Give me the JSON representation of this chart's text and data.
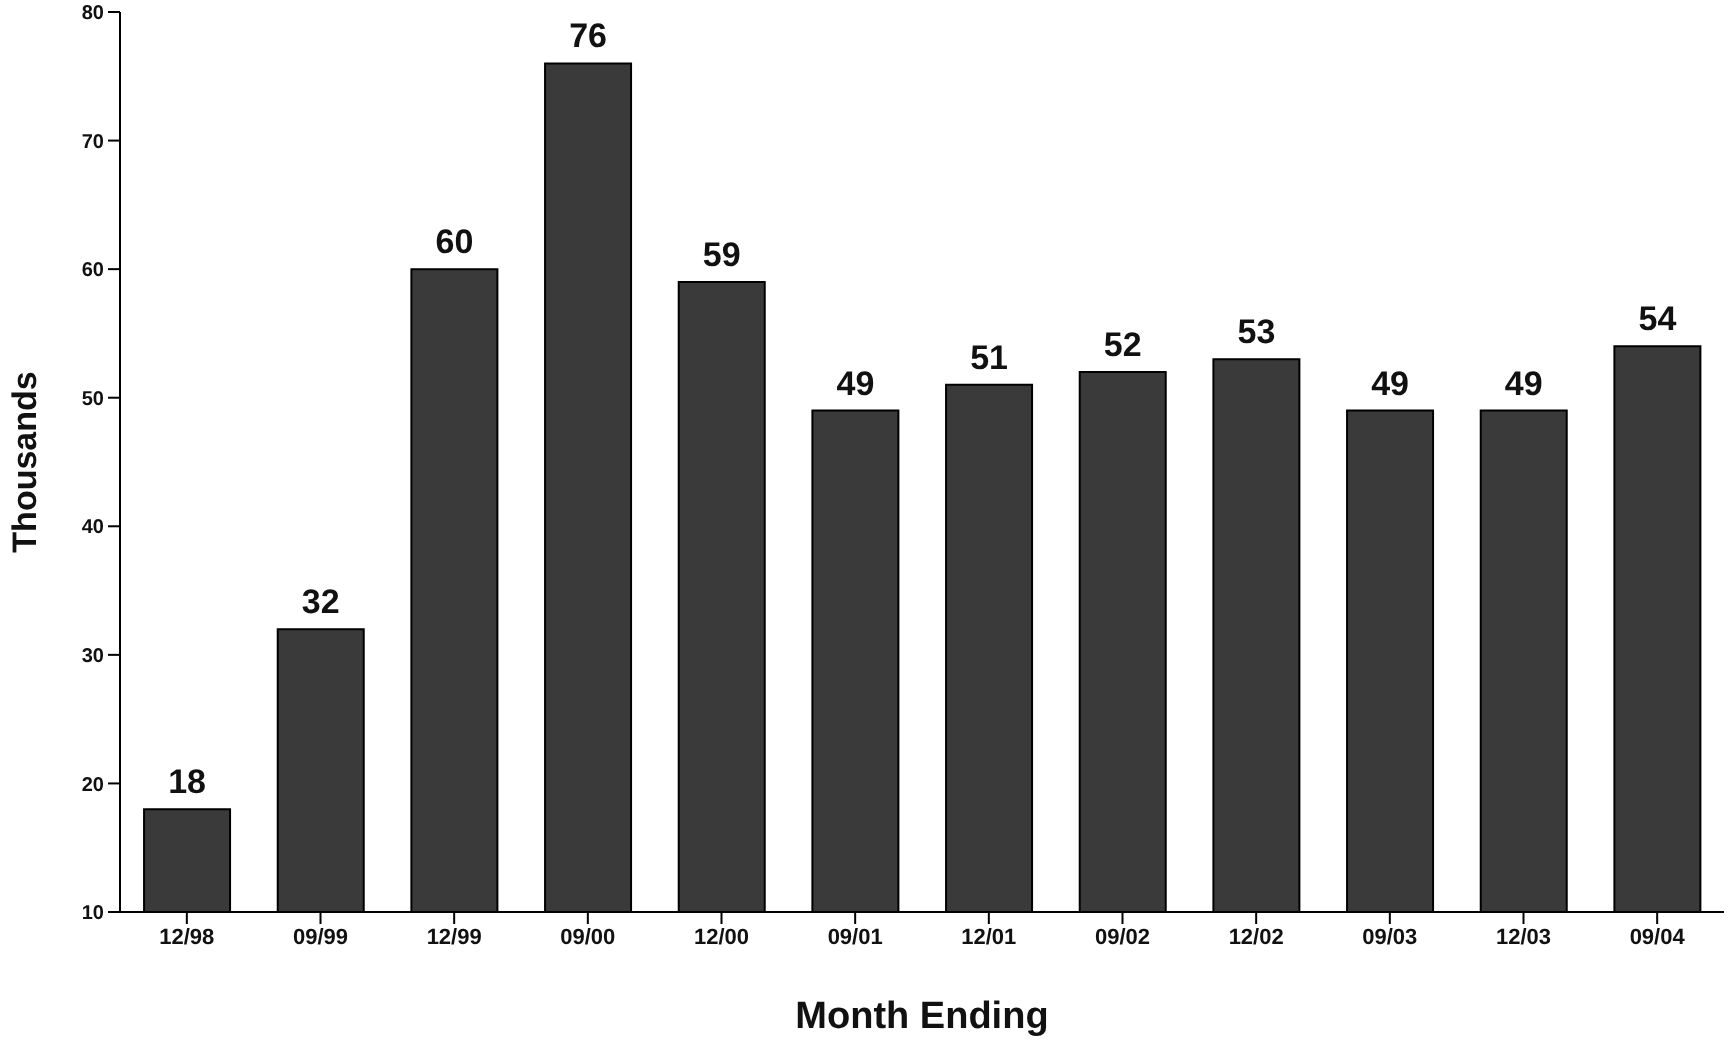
{
  "chart_data": {
    "type": "bar",
    "xlabel": "Month Ending",
    "ylabel": "Thousands",
    "categories": [
      "12/98",
      "09/99",
      "12/99",
      "09/00",
      "12/00",
      "09/01",
      "12/01",
      "09/02",
      "12/02",
      "09/03",
      "12/03",
      "09/04"
    ],
    "values": [
      18,
      32,
      60,
      76,
      59,
      49,
      51,
      52,
      53,
      49,
      49,
      54
    ],
    "color": "#3a3a3a",
    "ylim": [
      10,
      80
    ],
    "yticks": [
      10,
      20,
      30,
      40,
      50,
      60,
      70,
      80
    ],
    "data_labels": true,
    "grid": false
  }
}
